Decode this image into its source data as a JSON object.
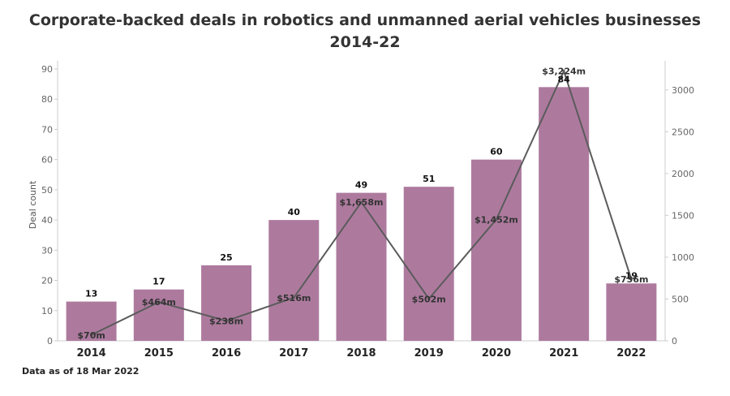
{
  "chart_data": {
    "type": "bar",
    "title": "Corporate-backed deals in robotics and unmanned aerial vehicles businesses 2014-22",
    "title_lines": [
      "Corporate-backed deals in robotics and unmanned aerial vehicles businesses",
      "2014-22"
    ],
    "categories": [
      "2014",
      "2015",
      "2016",
      "2017",
      "2018",
      "2019",
      "2020",
      "2021",
      "2022"
    ],
    "ylabel": "Deal count",
    "ylim": [
      0,
      90
    ],
    "y_ticks": [
      0,
      10,
      20,
      30,
      40,
      50,
      60,
      70,
      80,
      90
    ],
    "y2lim": [
      0,
      3250
    ],
    "y2_ticks": [
      0,
      500,
      1000,
      1500,
      2000,
      2500,
      3000
    ],
    "series": [
      {
        "kind": "bar",
        "values": [
          13,
          17,
          25,
          40,
          49,
          51,
          60,
          84,
          19
        ],
        "labels": [
          "13",
          "17",
          "25",
          "40",
          "49",
          "51",
          "60",
          "84",
          "19"
        ],
        "color": "#ad7a9e",
        "axis": "left"
      },
      {
        "kind": "line",
        "values": [
          70,
          464,
          238,
          516,
          1658,
          502,
          1452,
          3224,
          736
        ],
        "labels": [
          "$70m",
          "$464m",
          "$238m",
          "$516m",
          "$1,658m",
          "$502m",
          "$1,452m",
          "$3,224m",
          "$736m"
        ],
        "color": "#5b5b5b",
        "axis": "right"
      }
    ],
    "grid": false,
    "legend": "none",
    "footnote": "Data as of 18 Mar 2022"
  }
}
